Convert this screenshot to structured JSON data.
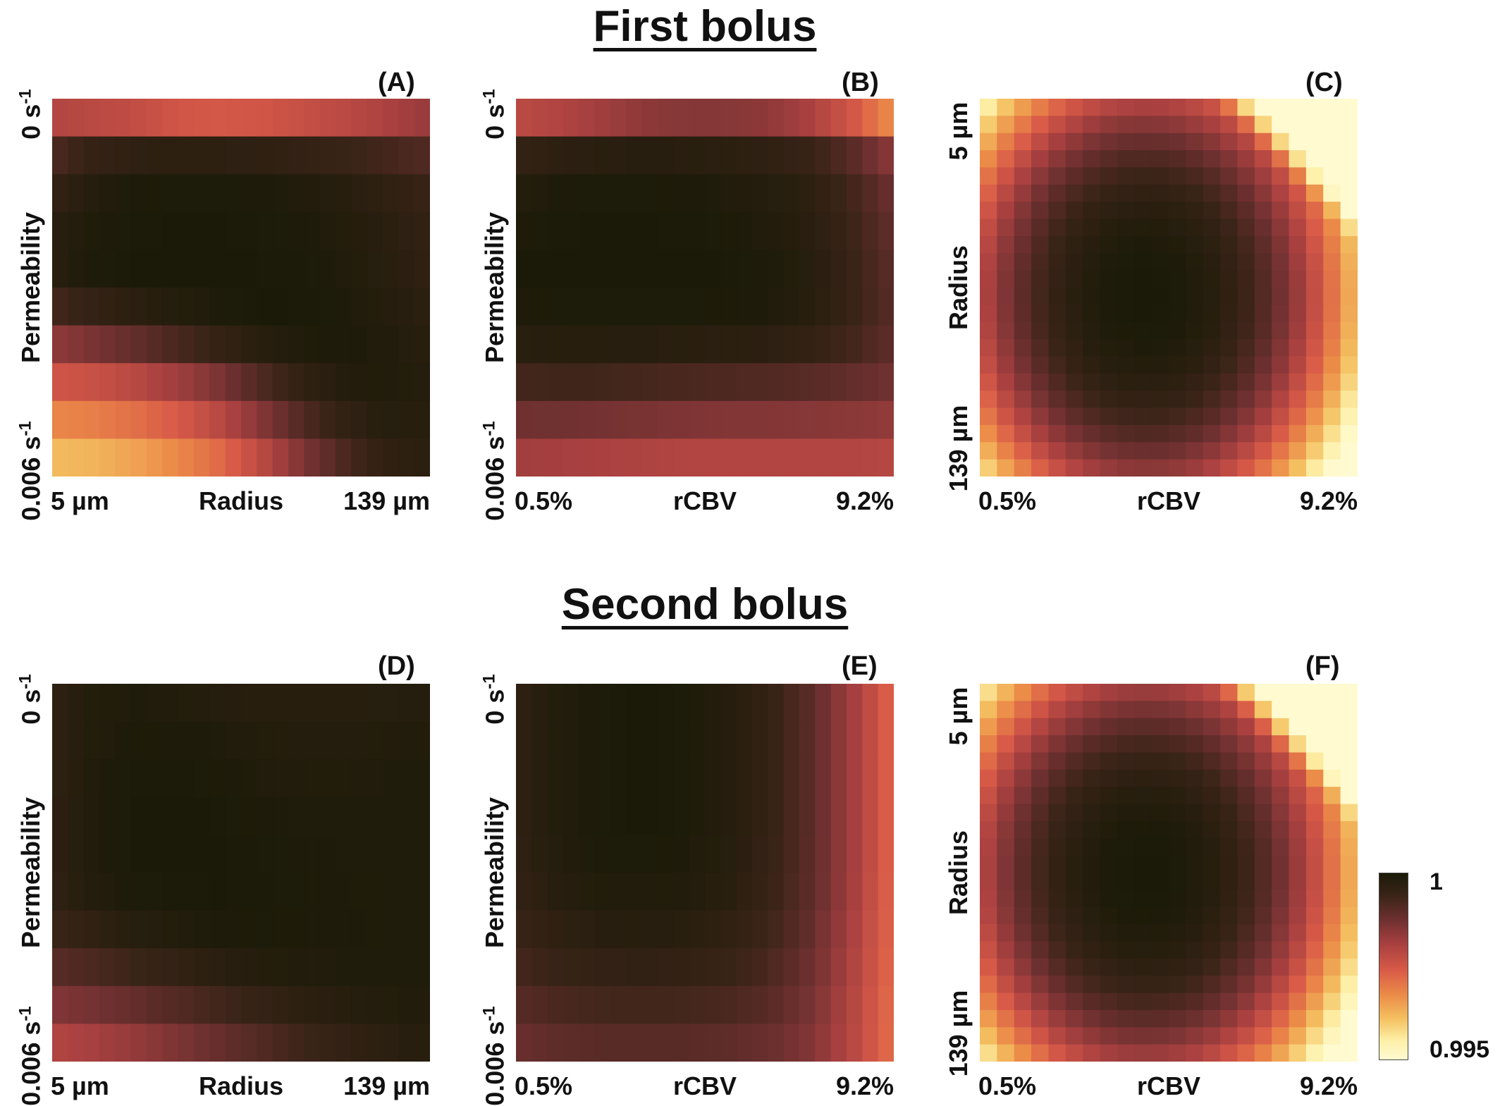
{
  "sections": [
    {
      "title": "First bolus",
      "panels": [
        "A",
        "B",
        "C"
      ]
    },
    {
      "title": "Second bolus",
      "panels": [
        "D",
        "E",
        "F"
      ]
    }
  ],
  "panels": [
    {
      "id": "A",
      "label": "(A)",
      "x_label": "Radius",
      "x_min": "5 µm",
      "x_max": "139 µm",
      "y_label": "Permeability",
      "y_top": "0 s",
      "y_top_exp": "-1",
      "y_bottom": "0.006 s",
      "y_bottom_exp": "-1"
    },
    {
      "id": "B",
      "label": "(B)",
      "x_label": "rCBV",
      "x_min": "0.5%",
      "x_max": "9.2%",
      "y_label": "Permeability",
      "y_top": "0 s",
      "y_top_exp": "-1",
      "y_bottom": "0.006 s",
      "y_bottom_exp": "-1"
    },
    {
      "id": "C",
      "label": "(C)",
      "x_label": "rCBV",
      "x_min": "0.5%",
      "x_max": "9.2%",
      "y_label": "Radius",
      "y_top": "5 µm",
      "y_top_exp": "",
      "y_bottom": "139 µm",
      "y_bottom_exp": ""
    },
    {
      "id": "D",
      "label": "(D)",
      "x_label": "Radius",
      "x_min": "5 µm",
      "x_max": "139 µm",
      "y_label": "Permeability",
      "y_top": "0 s",
      "y_top_exp": "-1",
      "y_bottom": "0.006 s",
      "y_bottom_exp": "-1"
    },
    {
      "id": "E",
      "label": "(E)",
      "x_label": "rCBV",
      "x_min": "0.5%",
      "x_max": "9.2%",
      "y_label": "Permeability",
      "y_top": "0 s",
      "y_top_exp": "-1",
      "y_bottom": "0.006 s",
      "y_bottom_exp": "-1"
    },
    {
      "id": "F",
      "label": "(F)",
      "x_label": "rCBV",
      "x_min": "0.5%",
      "x_max": "9.2%",
      "y_label": "Radius",
      "y_top": "5 µm",
      "y_top_exp": "",
      "y_bottom": "139 µm",
      "y_bottom_exp": ""
    }
  ],
  "colorbar": {
    "max_label": "1",
    "min_label": "0.995",
    "vmin": 0.995,
    "vmax": 1,
    "colors": [
      "#1b1a08",
      "#3a2418",
      "#6e3030",
      "#a84040",
      "#d85a48",
      "#eb8a48",
      "#f4c060",
      "#fdf0a8",
      "#fffad0"
    ]
  },
  "chart_data": [
    {
      "type": "heatmap",
      "panel": "A",
      "x_label": "Radius",
      "x_range": [
        "5 µm",
        "139 µm"
      ],
      "y_label": "Permeability",
      "y_range": [
        "0 s-1",
        "0.006 s-1"
      ],
      "z_rows_top_to_bottom": [
        [
          0.998,
          0.9979,
          0.9978,
          0.9976,
          0.99755,
          0.9976,
          0.99775,
          0.9979,
          0.9981,
          0.9983
        ],
        [
          0.9993,
          0.9997,
          0.99985,
          0.9999,
          0.9999,
          0.99985,
          0.99975,
          0.9996,
          0.9994,
          0.9992
        ],
        [
          0.9996,
          0.99985,
          0.99995,
          0.99998,
          0.99998,
          0.99995,
          0.9999,
          0.9998,
          0.99965,
          0.9995
        ],
        [
          0.99975,
          0.99995,
          1.0,
          1.0,
          1.0,
          0.99998,
          0.99995,
          0.99985,
          0.9997,
          0.99955
        ],
        [
          0.9997,
          0.99995,
          1.0,
          1.0,
          1.0,
          1.0,
          0.99998,
          0.9999,
          0.99975,
          0.9996
        ],
        [
          0.9987,
          0.999,
          0.9993,
          0.9996,
          0.99985,
          0.99998,
          1.0,
          0.99995,
          0.99985,
          0.9997
        ],
        [
          0.9978,
          0.9979,
          0.9981,
          0.9984,
          0.9988,
          0.9993,
          0.9997,
          0.9999,
          0.9999,
          0.9998
        ],
        [
          0.997,
          0.9971,
          0.9973,
          0.9976,
          0.998,
          0.9986,
          0.9992,
          0.9996,
          0.9998,
          0.99975
        ],
        [
          0.9963,
          0.9964,
          0.9966,
          0.9969,
          0.9973,
          0.9979,
          0.9986,
          0.9992,
          0.9996,
          0.9997
        ]
      ]
    },
    {
      "type": "heatmap",
      "panel": "B",
      "x_label": "rCBV",
      "x_range": [
        "0.5%",
        "9.2%"
      ],
      "y_label": "Permeability",
      "y_range": [
        "0 s-1",
        "0.006 s-1"
      ],
      "z_rows_top_to_bottom": [
        [
          0.9979,
          0.998,
          0.9982,
          0.9984,
          0.9985,
          0.9985,
          0.9984,
          0.9981,
          0.9976,
          0.9968
        ],
        [
          0.9997,
          0.99985,
          0.9999,
          0.9999,
          0.99988,
          0.99982,
          0.99975,
          0.9996,
          0.9992,
          0.9986
        ],
        [
          0.99985,
          0.99995,
          0.99998,
          0.99998,
          0.99995,
          0.9999,
          0.99982,
          0.99965,
          0.9993,
          0.9988
        ],
        [
          0.99998,
          1.0,
          1.0,
          1.0,
          1.0,
          0.99998,
          0.9999,
          0.99975,
          0.9994,
          0.9989
        ],
        [
          1.0,
          1.0,
          1.0,
          1.0,
          1.0,
          1.0,
          0.99995,
          0.99978,
          0.99945,
          0.999
        ],
        [
          0.99985,
          0.9999,
          0.9999,
          0.9999,
          0.9999,
          0.99988,
          0.99985,
          0.9997,
          0.9994,
          0.999
        ],
        [
          0.9994,
          0.99945,
          0.99945,
          0.9994,
          0.99935,
          0.9993,
          0.99925,
          0.99915,
          0.999,
          0.9988
        ],
        [
          0.9988,
          0.9988,
          0.99875,
          0.9987,
          0.99865,
          0.9986,
          0.99858,
          0.99855,
          0.9985,
          0.9984
        ],
        [
          0.9982,
          0.99815,
          0.9981,
          0.99805,
          0.998,
          0.998,
          0.998,
          0.998,
          0.998,
          0.99795
        ]
      ]
    },
    {
      "type": "heatmap",
      "panel": "C",
      "x_label": "rCBV",
      "x_range": [
        "0.5%",
        "9.2%"
      ],
      "y_label": "Radius",
      "y_range": [
        "5 µm",
        "139 µm"
      ],
      "z_model": "radial falloff from center (~0.44,0.52); saturates at 0.995 in top-right corner"
    },
    {
      "type": "heatmap",
      "panel": "D",
      "x_label": "Radius",
      "x_range": [
        "5 µm",
        "139 µm"
      ],
      "y_label": "Permeability",
      "y_range": [
        "0 s-1",
        "0.006 s-1"
      ],
      "z_rows_top_to_bottom": [
        [
          0.9996,
          0.99985,
          0.9999,
          0.99985,
          0.9998,
          0.99975,
          0.99975,
          0.99975,
          0.99978,
          0.9998
        ],
        [
          0.9996,
          0.99985,
          0.99995,
          0.99995,
          0.9999,
          0.99985,
          0.99982,
          0.99982,
          0.99985,
          0.99988
        ],
        [
          0.9996,
          0.9999,
          1.0,
          1.0,
          0.99995,
          0.9999,
          0.99988,
          0.99988,
          0.9999,
          0.9999
        ],
        [
          0.9996,
          0.9999,
          1.0,
          1.0,
          1.0,
          0.99995,
          0.9999,
          0.9999,
          0.9999,
          0.9999
        ],
        [
          0.9996,
          0.9999,
          1.0,
          1.0,
          1.0,
          0.99998,
          0.99995,
          0.9999,
          0.9999,
          0.9999
        ],
        [
          0.9995,
          0.99975,
          0.9999,
          0.99995,
          0.99998,
          0.99998,
          0.99995,
          0.99992,
          0.9999,
          0.9999
        ],
        [
          0.9991,
          0.9993,
          0.9995,
          0.99965,
          0.9998,
          0.9999,
          0.99992,
          0.99992,
          0.9999,
          0.9999
        ],
        [
          0.9986,
          0.99875,
          0.99895,
          0.99915,
          0.99935,
          0.99955,
          0.9997,
          0.9998,
          0.99985,
          0.99988
        ],
        [
          0.998,
          0.99815,
          0.99835,
          0.9986,
          0.99885,
          0.9991,
          0.99935,
          0.99955,
          0.9997,
          0.99978
        ]
      ]
    },
    {
      "type": "heatmap",
      "panel": "E",
      "x_label": "rCBV",
      "x_range": [
        "0.5%",
        "9.2%"
      ],
      "y_label": "Permeability",
      "y_range": [
        "0 s-1",
        "0.006 s-1"
      ],
      "z_rows_top_to_bottom": [
        [
          0.9996,
          0.99985,
          0.99995,
          1.0,
          0.99995,
          0.9998,
          0.9995,
          0.999,
          0.9982,
          0.9973
        ],
        [
          0.9996,
          0.99985,
          0.99995,
          1.0,
          0.99995,
          0.9998,
          0.9995,
          0.999,
          0.9982,
          0.9973
        ],
        [
          0.9996,
          0.99985,
          0.99995,
          1.0,
          0.99995,
          0.9998,
          0.9995,
          0.999,
          0.9982,
          0.9973
        ],
        [
          0.9996,
          0.99985,
          0.99995,
          1.0,
          0.99995,
          0.9998,
          0.9995,
          0.999,
          0.9982,
          0.9973
        ],
        [
          0.99955,
          0.9998,
          0.99992,
          0.99995,
          0.9999,
          0.99978,
          0.99948,
          0.99898,
          0.9982,
          0.9973
        ],
        [
          0.99945,
          0.99968,
          0.9998,
          0.99982,
          0.99978,
          0.99966,
          0.9994,
          0.99892,
          0.99815,
          0.99728
        ],
        [
          0.9993,
          0.9995,
          0.9996,
          0.99962,
          0.99958,
          0.99948,
          0.99925,
          0.9988,
          0.99808,
          0.99725
        ],
        [
          0.99905,
          0.99922,
          0.9993,
          0.99932,
          0.9993,
          0.99922,
          0.99905,
          0.99868,
          0.998,
          0.9972
        ],
        [
          0.9988,
          0.99895,
          0.999,
          0.99902,
          0.999,
          0.99895,
          0.99882,
          0.99855,
          0.99795,
          0.99718
        ]
      ]
    },
    {
      "type": "heatmap",
      "panel": "F",
      "x_label": "rCBV",
      "x_range": [
        "0.5%",
        "9.2%"
      ],
      "y_label": "Radius",
      "y_range": [
        "5 µm",
        "139 µm"
      ],
      "z_model": "radial falloff from center (~0.44,0.50); saturates at 0.995 in top-right corner"
    }
  ]
}
